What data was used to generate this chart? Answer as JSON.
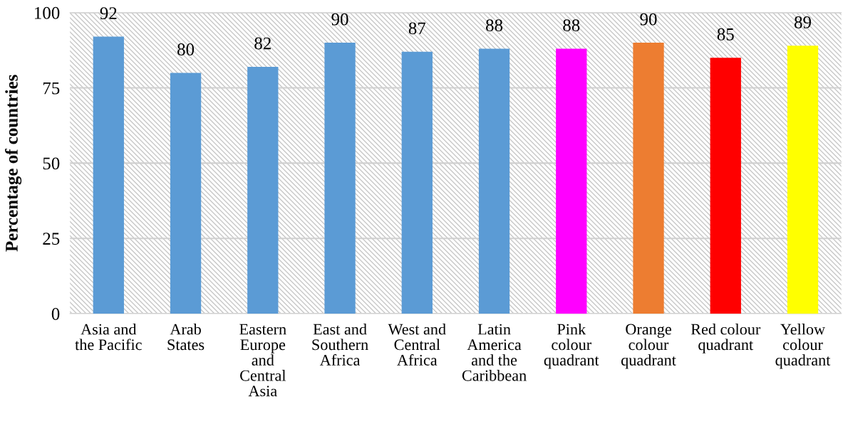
{
  "chart_data": {
    "type": "bar",
    "ylabel": "Percentage of countries",
    "categories": [
      "Asia and\nthe Pacific",
      "Arab\nStates",
      "Eastern\nEurope\nand\nCentral\nAsia",
      "East and\nSouthern\nAfrica",
      "West and\nCentral\nAfrica",
      "Latin\nAmerica\nand the\nCaribbean",
      "Pink\ncolour\nquadrant",
      "Orange\ncolour\nquadrant",
      "Red colour\nquadrant",
      "Yellow\ncolour\nquadrant"
    ],
    "values": [
      92,
      80,
      82,
      90,
      87,
      88,
      88,
      90,
      85,
      89
    ],
    "colors": [
      "#5b9bd5",
      "#5b9bd5",
      "#5b9bd5",
      "#5b9bd5",
      "#5b9bd5",
      "#5b9bd5",
      "#ff00ff",
      "#ed7d31",
      "#ff0000",
      "#ffff00"
    ],
    "ylim": [
      0,
      100
    ],
    "yticks": [
      0,
      25,
      50,
      75,
      100
    ],
    "grid": "y",
    "data_labels": true
  }
}
